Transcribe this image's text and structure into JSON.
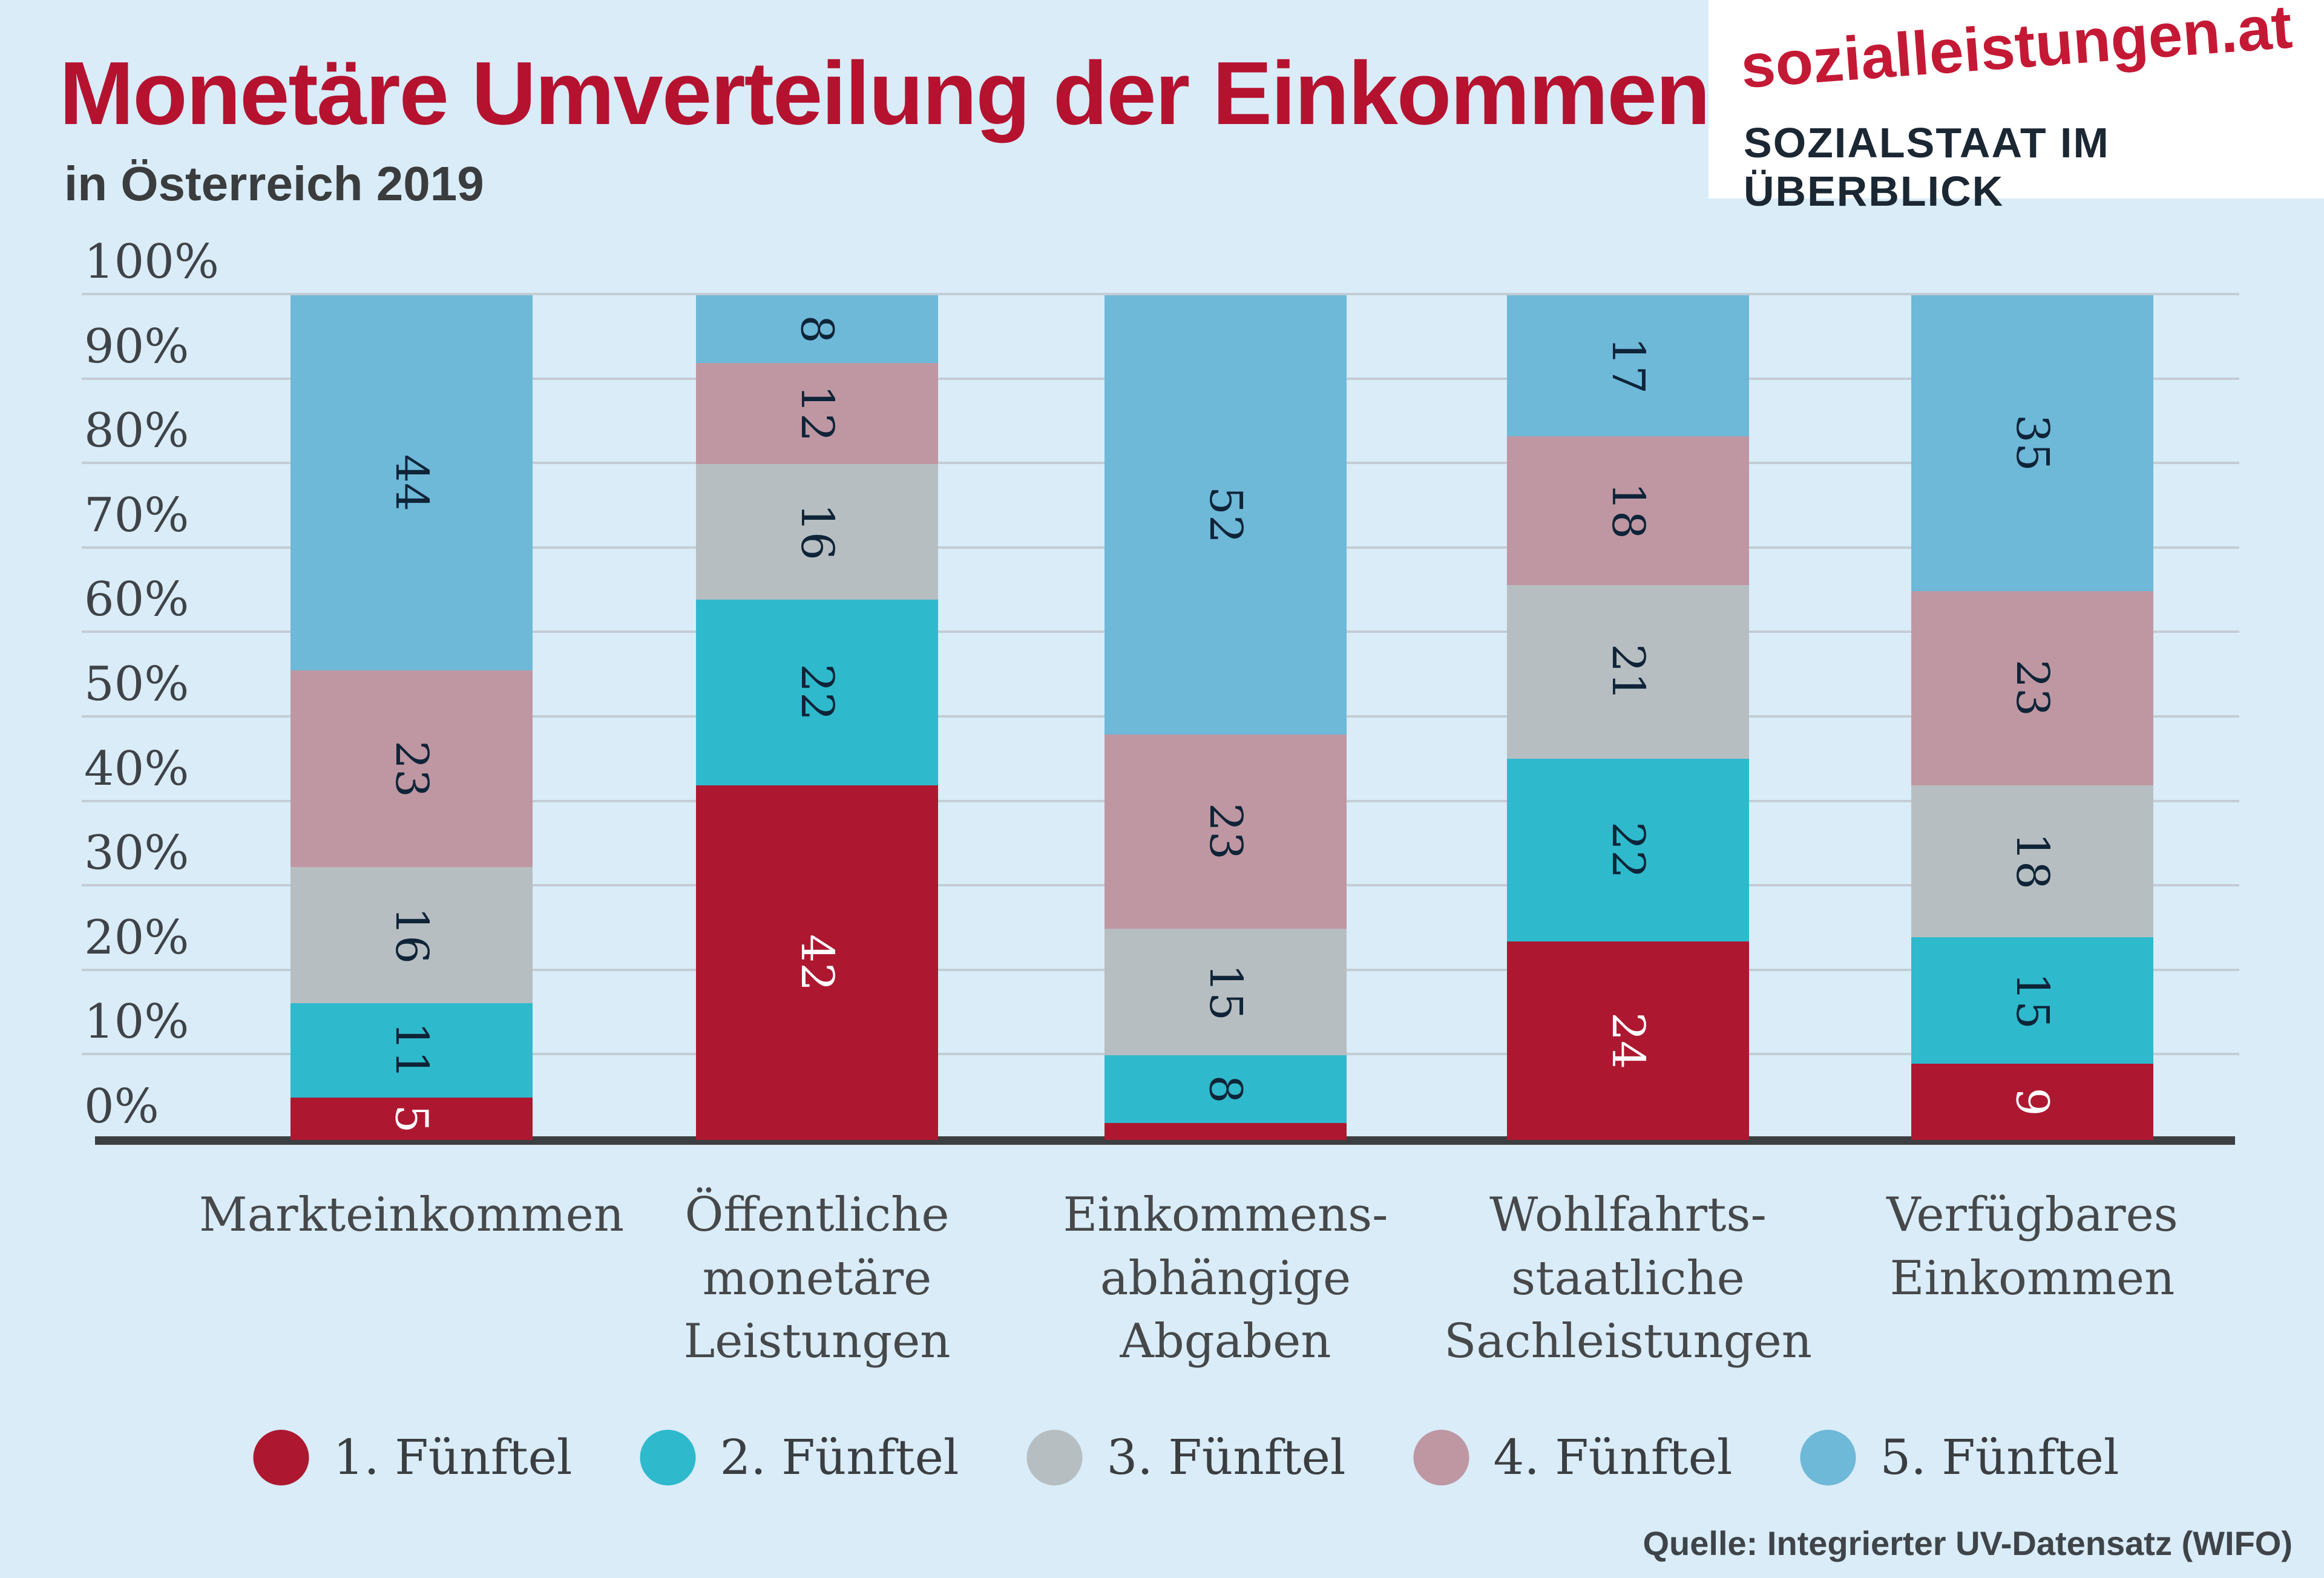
{
  "header": {
    "title": "Monetäre Umverteilung der Einkommen",
    "subtitle": "in Österreich 2019",
    "logo": {
      "line1": "sozialleistungen.at",
      "line2": "SOZIALSTAAT IM ÜBERBLICK"
    }
  },
  "colors": {
    "background": "#d9ecf8",
    "title_red": "#b5122f",
    "subtitle_text": "#3a3c3e",
    "logo_red": "#c41935",
    "logo_navy": "#1b2733",
    "grid": "#c3cdd5",
    "axis": "#3b3f42",
    "tick_text": "#3f4347",
    "bar_label_navy": "#0f2438",
    "bar_label_white": "#ffffff",
    "series": [
      "#ad1830",
      "#2fb9cc",
      "#b7bec1",
      "#be97a2",
      "#6eb8d8"
    ]
  },
  "chart_data": {
    "type": "bar",
    "stacked": true,
    "unit": "percent",
    "ylim": [
      0,
      100
    ],
    "grid": true,
    "yticks": [
      "100%",
      "90%",
      "80%",
      "70%",
      "60%",
      "50%",
      "40%",
      "30%",
      "20%",
      "10%",
      "0%"
    ],
    "categories": [
      "Markteinkommen",
      "Öffentliche monetäre Leistungen",
      "Einkommens-abhängige Abgaben",
      "Wohlfahrts-staatliche Sachleistungen",
      "Verfügbares Einkommen"
    ],
    "category_lines": [
      [
        "Markteinkommen"
      ],
      [
        "Öffentliche",
        "monetäre",
        "Leistungen"
      ],
      [
        "Einkommens-",
        "abhängige",
        "Abgaben"
      ],
      [
        "Wohlfahrts-",
        "staatliche",
        "Sachleistungen"
      ],
      [
        "Verfügbares",
        "Einkommen"
      ]
    ],
    "series": [
      {
        "name": "1. Fünftel",
        "values": [
          5,
          42,
          2,
          24,
          9
        ],
        "labels": [
          "5",
          "42",
          "",
          "24",
          "9"
        ]
      },
      {
        "name": "2. Fünftel",
        "values": [
          11,
          22,
          8,
          22,
          15
        ]
      },
      {
        "name": "3. Fünftel",
        "values": [
          16,
          16,
          15,
          21,
          18
        ]
      },
      {
        "name": "4. Fünftel",
        "values": [
          23,
          12,
          23,
          18,
          23
        ]
      },
      {
        "name": "5. Fünftel",
        "values": [
          44,
          8,
          52,
          17,
          35
        ]
      }
    ],
    "legend_position": "bottom"
  },
  "source": "Quelle: Integrierter UV-Datensatz (WIFO)"
}
